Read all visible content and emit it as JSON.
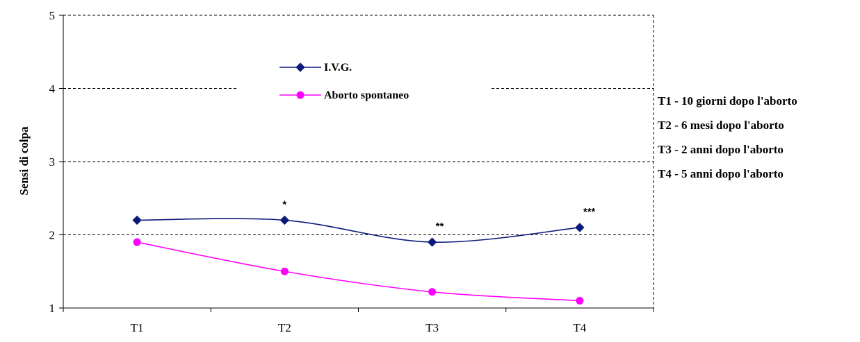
{
  "chart_data": {
    "type": "line",
    "categories": [
      "T1",
      "T2",
      "T3",
      "T4"
    ],
    "ylabel": "Sensi di colpa",
    "ylim": [
      1,
      5
    ],
    "yticks": [
      1,
      2,
      3,
      4,
      5
    ],
    "grid": true,
    "legend_position": "top-center",
    "series": [
      {
        "name": "I.V.G.",
        "values": [
          2.2,
          2.2,
          1.9,
          2.1
        ],
        "color": "#0b1a7a",
        "marker": "diamond"
      },
      {
        "name": "Aborto spontaneo",
        "values": [
          1.9,
          1.5,
          1.22,
          1.1
        ],
        "color": "#ff00ff",
        "marker": "circle"
      }
    ],
    "annotations": [
      {
        "text": "*",
        "category": "T2"
      },
      {
        "text": "**",
        "category": "T3"
      },
      {
        "text": "***",
        "category": "T4"
      }
    ],
    "notes": [
      "T1 - 10 giorni dopo l'aborto",
      "T2 - 6 mesi dopo l'aborto",
      "T3 - 2 anni dopo l'aborto",
      "T4 - 5 anni dopo l'aborto"
    ]
  }
}
